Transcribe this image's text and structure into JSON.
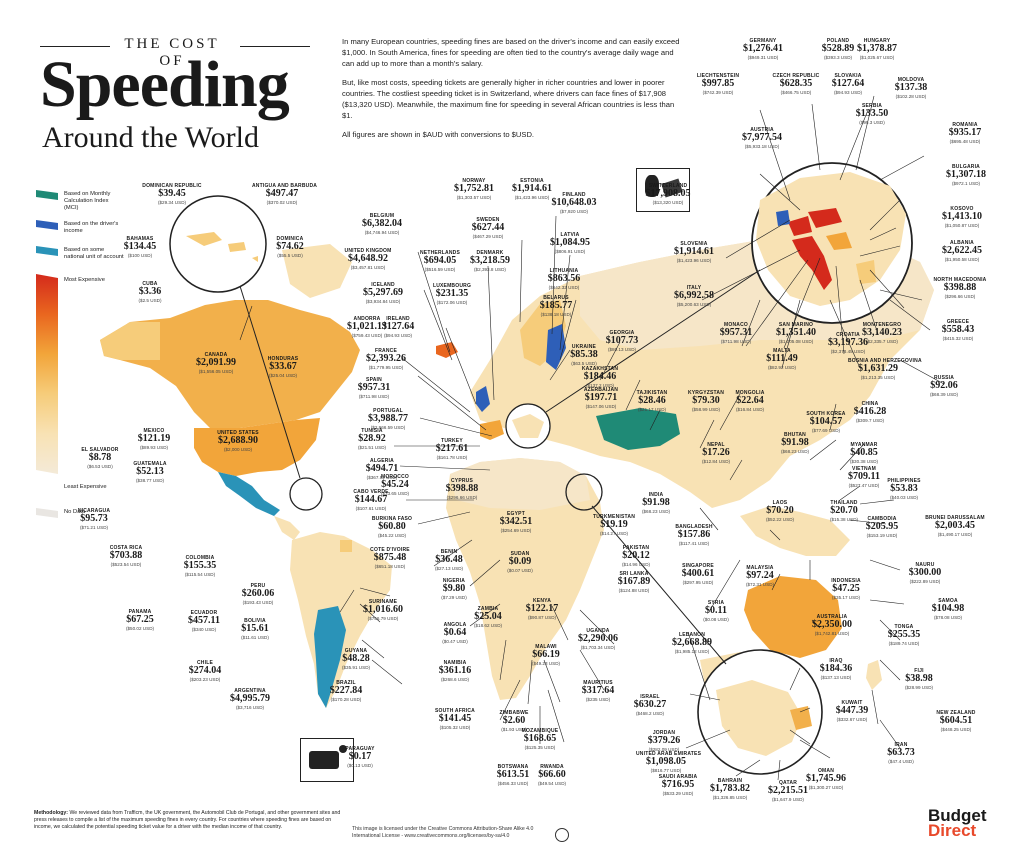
{
  "header": {
    "kicker": "THE COST OF",
    "title": "Speeding",
    "subtitle": "Around the World"
  },
  "intro": {
    "p1": "In many European countries, speeding fines are based on the driver's income and can easily exceed $1,000. In South America, fines for speeding are often tied to the country's average daily wage and can add up to more than a month's salary.",
    "p2": "But, like most costs, speeding tickets are generally higher in richer countries and lower in poorer countries. The costliest speeding ticket is in Switzerland, where drivers can face fines of $17,908 ($13,320 USD). Meanwhile, the maximum fine for speeding in several African countries is less than $1.",
    "p3": "All figures are shown in $AUD with conversions to $USD."
  },
  "legend": {
    "items": [
      {
        "label": "Based on Monthly Calculation Index (MCI)",
        "color": "#1f8a76"
      },
      {
        "label": "Based on the driver's income",
        "color": "#2e5fb8"
      },
      {
        "label": "Based on some national unit of account",
        "color": "#2a93b8"
      },
      {
        "label": "Most Expensive",
        "color": "#d42a1c"
      },
      {
        "label": "Least Expensive",
        "color": "#f4ead8"
      },
      {
        "label": "No Data",
        "color": "#eeeeee"
      }
    ],
    "gradient": [
      "#d42a1c",
      "#e9661f",
      "#f2a53a",
      "#f6cc7a",
      "#f8e2b4",
      "#f4ead8"
    ]
  },
  "colors": {
    "land_default": "#f7e4c0",
    "most_orange": "#f2b04b",
    "nodata": "#e9e6e2",
    "teal_mci": "#1f8a76",
    "blue_income": "#2e5fb8",
    "cyan_unit": "#2a93b8",
    "red_top": "#d42a1c"
  },
  "countries": [
    {
      "name": "DOMINICAN REPUBLIC",
      "aud": "$39.45",
      "usd": "$29.34 USD"
    },
    {
      "name": "ANTIGUA AND BARBUDA",
      "aud": "$497.47",
      "usd": "$370.02 USD"
    },
    {
      "name": "BAHAMAS",
      "aud": "$134.45",
      "usd": "$100 USD"
    },
    {
      "name": "DOMINICA",
      "aud": "$74.62",
      "usd": "$55.5 USD"
    },
    {
      "name": "CUBA",
      "aud": "$3.36",
      "usd": "$2.5 USD"
    },
    {
      "name": "CANADA",
      "aud": "$2,091.99",
      "usd": "$1,556.05 USD"
    },
    {
      "name": "HONDURAS",
      "aud": "$33.67",
      "usd": "$25.04 USD"
    },
    {
      "name": "UNITED STATES",
      "aud": "$2,688.90",
      "usd": "$2,000 USD"
    },
    {
      "name": "MEXICO",
      "aud": "$121.19",
      "usd": "$89.93 USD"
    },
    {
      "name": "EL SALVADOR",
      "aud": "$8.78",
      "usd": "$6.53 USD"
    },
    {
      "name": "GUATEMALA",
      "aud": "$52.13",
      "usd": "$38.77 USD"
    },
    {
      "name": "NICARAGUA",
      "aud": "$95.73",
      "usd": "$71.21 USD"
    },
    {
      "name": "COSTA RICA",
      "aud": "$703.88",
      "usd": "$523.54 USD"
    },
    {
      "name": "PANAMA",
      "aud": "$67.25",
      "usd": "$50.02 USD"
    },
    {
      "name": "COLOMBIA",
      "aud": "$155.35",
      "usd": "$115.54 USD"
    },
    {
      "name": "PERU",
      "aud": "$260.06",
      "usd": "$193.43 USD"
    },
    {
      "name": "ECUADOR",
      "aud": "$457.11",
      "usd": "$340 USD"
    },
    {
      "name": "BOLIVIA",
      "aud": "$15.61",
      "usd": "$11.61 USD"
    },
    {
      "name": "CHILE",
      "aud": "$274.04",
      "usd": "$203.23 USD"
    },
    {
      "name": "ARGENTINA",
      "aud": "$4,995.79",
      "usd": "$3,716 USD"
    },
    {
      "name": "SURINAME",
      "aud": "$1,016.60",
      "usd": "$756.79 USD"
    },
    {
      "name": "GUYANA",
      "aud": "$48.28",
      "usd": "$35.91 USD"
    },
    {
      "name": "BRAZIL",
      "aud": "$227.84",
      "usd": "$170.28 USD"
    },
    {
      "name": "PARAGUAY",
      "aud": "$0.17",
      "usd": "$0.13 USD"
    },
    {
      "name": "BELGIUM",
      "aud": "$6,382.04",
      "usd": "$4,746.94 USD"
    },
    {
      "name": "UNITED KINGDOM",
      "aud": "$4,648.92",
      "usd": "$3,457.81 USD"
    },
    {
      "name": "ICELAND",
      "aud": "$5,297.69",
      "usd": "$3,934.84 USD"
    },
    {
      "name": "IRELAND",
      "aud": "$127.64",
      "usd": "$94.93 USD"
    },
    {
      "name": "ANDORRA",
      "aud": "$1,021.13",
      "usd": "$759.43 USD"
    },
    {
      "name": "FRANCE",
      "aud": "$2,393.26",
      "usd": "$1,779.95 USD"
    },
    {
      "name": "SPAIN",
      "aud": "$957.31",
      "usd": "$711.98 USD"
    },
    {
      "name": "PORTUGAL",
      "aud": "$3,988.77",
      "usd": "$2,966.59 USD"
    },
    {
      "name": "TUNISIA",
      "aud": "$28.92",
      "usd": "$21.51 USD"
    },
    {
      "name": "ALGERIA",
      "aud": "$494.71",
      "usd": "$367.92 USD"
    },
    {
      "name": "MOROCCO",
      "aud": "$45.24",
      "usd": "$33.65 USD"
    },
    {
      "name": "CABO VERDE",
      "aud": "$144.67",
      "usd": "$107.61 USD"
    },
    {
      "name": "BURKINA FASO",
      "aud": "$60.80",
      "usd": "$45.22 USD"
    },
    {
      "name": "COTE D'IVOIRE",
      "aud": "$875.48",
      "usd": "$651.18 USD"
    },
    {
      "name": "BENIN",
      "aud": "$36.48",
      "usd": "$27.13 USD"
    },
    {
      "name": "NIGERIA",
      "aud": "$9.80",
      "usd": "$7.29 USD"
    },
    {
      "name": "ANGOLA",
      "aud": "$0.64",
      "usd": "$0.47 USD"
    },
    {
      "name": "NAMIBIA",
      "aud": "$361.16",
      "usd": "$268.6 USD"
    },
    {
      "name": "SOUTH AFRICA",
      "aud": "$141.45",
      "usd": "$105.32 USD"
    },
    {
      "name": "ZAMBIA",
      "aud": "$25.04",
      "usd": "$18.62 USD"
    },
    {
      "name": "ZIMBABWE",
      "aud": "$2.60",
      "usd": "$1.93 USD"
    },
    {
      "name": "BOTSWANA",
      "aud": "$613.51",
      "usd": "$456.33 USD"
    },
    {
      "name": "MOZAMBIQUE",
      "aud": "$168.65",
      "usd": "$125.35 USD"
    },
    {
      "name": "RWANDA",
      "aud": "$66.60",
      "usd": "$49.54 USD"
    },
    {
      "name": "MALAWI",
      "aud": "$66.19",
      "usd": "$49.23 USD"
    },
    {
      "name": "KENYA",
      "aud": "$122.17",
      "usd": "$90.87 USD"
    },
    {
      "name": "UGANDA",
      "aud": "$2,290.06",
      "usd": "$1,703.34 USD"
    },
    {
      "name": "MAURITIUS",
      "aud": "$317.64",
      "usd": "$235 USD"
    },
    {
      "name": "SUDAN",
      "aud": "$0.09",
      "usd": "$0.07 USD"
    },
    {
      "name": "EGYPT",
      "aud": "$342.51",
      "usd": "$254.69 USD"
    },
    {
      "name": "TURKEY",
      "aud": "$217.61",
      "usd": "$161.78 USD"
    },
    {
      "name": "CYPRUS",
      "aud": "$398.88",
      "usd": "$296.66 USD"
    },
    {
      "name": "NORWAY",
      "aud": "$1,752.81",
      "usd": "$1,303.57 USD"
    },
    {
      "name": "ESTONIA",
      "aud": "$1,914.61",
      "usd": "$1,423.96 USD"
    },
    {
      "name": "FINLAND",
      "aud": "$10,648.03",
      "usd": "$7,920 USD"
    },
    {
      "name": "SWEDEN",
      "aud": "$627.44",
      "usd": "$467.29 USD"
    },
    {
      "name": "NETHERLANDS",
      "aud": "$694.05",
      "usd": "$516.59 USD"
    },
    {
      "name": "DENMARK",
      "aud": "$3,218.59",
      "usd": "$2,393.8 USD"
    },
    {
      "name": "LATVIA",
      "aud": "$1,084.95",
      "usd": "$806.91 USD"
    },
    {
      "name": "LUXEMBOURG",
      "aud": "$231.35",
      "usd": "$172.06 USD"
    },
    {
      "name": "LITHUANIA",
      "aud": "$863.56",
      "usd": "$642.32 USD"
    },
    {
      "name": "BELARUS",
      "aud": "$185.77",
      "usd": "$138.18 USD"
    },
    {
      "name": "UKRAINE",
      "aud": "$85.38",
      "usd": "$63.5 USD"
    },
    {
      "name": "GEORGIA",
      "aud": "$107.73",
      "usd": "$80.13 USD"
    },
    {
      "name": "KAZAKHSTAN",
      "aud": "$184.46",
      "usd": "$137.2 USD"
    },
    {
      "name": "AZERBAIJAN",
      "aud": "$197.71",
      "usd": "$147.06 USD"
    },
    {
      "name": "TAJIKISTAN",
      "aud": "$28.46",
      "usd": "$21.17 USD"
    },
    {
      "name": "KYRGYZSTAN",
      "aud": "$79.30",
      "usd": "$58.99 USD"
    },
    {
      "name": "MONGOLIA",
      "aud": "$22.64",
      "usd": "$16.84 USD"
    },
    {
      "name": "RUSSIA",
      "aud": "$92.06",
      "usd": "$68.39 USD"
    },
    {
      "name": "SWITZERLAND",
      "aud": "$17,908.05",
      "usd": "$13,320 USD"
    },
    {
      "name": "GERMANY",
      "aud": "$1,276.41",
      "usd": "$949.31 USD"
    },
    {
      "name": "POLAND",
      "aud": "$528.89",
      "usd": "$393.3 USD"
    },
    {
      "name": "HUNGARY",
      "aud": "$1,378.87",
      "usd": "$1,025.67 USD"
    },
    {
      "name": "LIECHTENSTEIN",
      "aud": "$997.85",
      "usd": "$742.39 USD"
    },
    {
      "name": "CZECH REPUBLIC",
      "aud": "$628.35",
      "usd": "$466.75 USD"
    },
    {
      "name": "SLOVAKIA",
      "aud": "$127.64",
      "usd": "$94.93 USD"
    },
    {
      "name": "MOLDOVA",
      "aud": "$137.38",
      "usd": "$102.28 USD"
    },
    {
      "name": "SERBIA",
      "aud": "$133.50",
      "usd": "$99.3 USD"
    },
    {
      "name": "AUSTRIA",
      "aud": "$7,977.54",
      "usd": "$5,933.18 USD"
    },
    {
      "name": "ROMANIA",
      "aud": "$935.17",
      "usd": "$695.48 USD"
    },
    {
      "name": "BULGARIA",
      "aud": "$1,307.18",
      "usd": "$972.1 USD"
    },
    {
      "name": "KOSOVO",
      "aud": "$1,413.10",
      "usd": "$1,050.87 USD"
    },
    {
      "name": "SLOVENIA",
      "aud": "$1,914.61",
      "usd": "$1,423.96 USD"
    },
    {
      "name": "ALBANIA",
      "aud": "$2,622.45",
      "usd": "$1,950.58 USD"
    },
    {
      "name": "ITALY",
      "aud": "$6,992.58",
      "usd": "$5,200.63 USD"
    },
    {
      "name": "NORTH MACEDONIA",
      "aud": "$398.88",
      "usd": "$296.66 USD"
    },
    {
      "name": "MONACO",
      "aud": "$957.31",
      "usd": "$711.98 USD"
    },
    {
      "name": "SAN MARINO",
      "aud": "$1,351.40",
      "usd": "$1,005.08 USD"
    },
    {
      "name": "MONTENEGRO",
      "aud": "$3,140.23",
      "usd": "$2,335.7 USD"
    },
    {
      "name": "CROATIA",
      "aud": "$3,197.36",
      "usd": "$2,378.45 USD"
    },
    {
      "name": "GREECE",
      "aud": "$558.43",
      "usd": "$415.32 USD"
    },
    {
      "name": "MALTA",
      "aud": "$111.49",
      "usd": "$82.92 USD"
    },
    {
      "name": "BOSNIA AND HERZEGOVINA",
      "aud": "$1,631.29",
      "usd": "$1,213.35 USD"
    },
    {
      "name": "CHINA",
      "aud": "$416.28",
      "usd": "$309.7 USD"
    },
    {
      "name": "SOUTH KOREA",
      "aud": "$104.57",
      "usd": "$77.69 USD"
    },
    {
      "name": "NEPAL",
      "aud": "$17.26",
      "usd": "$12.84 USD"
    },
    {
      "name": "BHUTAN",
      "aud": "$91.98",
      "usd": "$68.23 USD"
    },
    {
      "name": "MYANMAR",
      "aud": "$40.85",
      "usd": "$30.38 USD"
    },
    {
      "name": "VIETNAM",
      "aud": "$709.11",
      "usd": "$527.47 USD"
    },
    {
      "name": "PHILIPPINES",
      "aud": "$53.83",
      "usd": "$40.03 USD"
    },
    {
      "name": "INDIA",
      "aud": "$91.98",
      "usd": "$68.23 USD"
    },
    {
      "name": "LAOS",
      "aud": "$70.20",
      "usd": "$52.22 USD"
    },
    {
      "name": "THAILAND",
      "aud": "$20.70",
      "usd": "$15.38 USD"
    },
    {
      "name": "CAMBODIA",
      "aud": "$205.95",
      "usd": "$153.19 USD"
    },
    {
      "name": "BRUNEI DARUSSALAM",
      "aud": "$2,003.45",
      "usd": "$1,490.17 USD"
    },
    {
      "name": "BANGLADESH",
      "aud": "$157.86",
      "usd": "$117.41 USD"
    },
    {
      "name": "PAKISTAN",
      "aud": "$20.12",
      "usd": "$14.96 USD"
    },
    {
      "name": "TURKMENISTAN",
      "aud": "$19.19",
      "usd": "$14.27 USD"
    },
    {
      "name": "SRI LANKA",
      "aud": "$167.89",
      "usd": "$124.88 USD"
    },
    {
      "name": "SINGAPORE",
      "aud": "$400.61",
      "usd": "$297.95 USD"
    },
    {
      "name": "MALAYSIA",
      "aud": "$97.24",
      "usd": "$72.31 USD"
    },
    {
      "name": "INDONESIA",
      "aud": "$47.25",
      "usd": "$35.17 USD"
    },
    {
      "name": "NAURU",
      "aud": "$300.00",
      "usd": "$222.89 USD"
    },
    {
      "name": "SAMOA",
      "aud": "$104.98",
      "usd": "$78.08 USD"
    },
    {
      "name": "SYRIA",
      "aud": "$0.11",
      "usd": "$0.08 USD"
    },
    {
      "name": "AUSTRALIA",
      "aud": "$2,350.00",
      "usd": "$1,742.81 USD"
    },
    {
      "name": "TONGA",
      "aud": "$255.35",
      "usd": "$189.74 USD"
    },
    {
      "name": "FIJI",
      "aud": "$38.98",
      "usd": "$28.99 USD"
    },
    {
      "name": "NEW ZEALAND",
      "aud": "$604.51",
      "usd": "$448.25 USD"
    },
    {
      "name": "LEBANON",
      "aud": "$2,668.89",
      "usd": "$1,985.12 USD"
    },
    {
      "name": "IRAQ",
      "aud": "$184.36",
      "usd": "$137.13 USD"
    },
    {
      "name": "KUWAIT",
      "aud": "$447.39",
      "usd": "$332.67 USD"
    },
    {
      "name": "ISRAEL",
      "aud": "$630.27",
      "usd": "$468.2 USD"
    },
    {
      "name": "JORDAN",
      "aud": "$379.26",
      "usd": "$282.09 USD"
    },
    {
      "name": "UNITED ARAB EMIRATES",
      "aud": "$1,098.05",
      "usd": "$816.77 USD"
    },
    {
      "name": "SAUDI ARABIA",
      "aud": "$716.95",
      "usd": "$533.29 USD"
    },
    {
      "name": "IRAN",
      "aud": "$63.73",
      "usd": "$47.4 USD"
    },
    {
      "name": "OMAN",
      "aud": "$1,745.96",
      "usd": "$1,300.27 USD"
    },
    {
      "name": "BAHRAIN",
      "aud": "$1,783.82",
      "usd": "$1,326.85 USD"
    },
    {
      "name": "QATAR",
      "aud": "$2,215.51",
      "usd": "$1,647.9 USD"
    }
  ],
  "footer": {
    "methodology_label": "Methodology:",
    "methodology": "We reviewed data from Trafficm, the UK government, the Automobil Club de Portugal, and other government sites and press releases to compile a list of the maximum speeding fines in every country. For countries where speeding fines are based on income, we calculated the potential speeding ticket value for a driver with the median income of that country.",
    "license": "This image is licensed under the Creative Commons Attribution-Share Alike 4.0 International License - www.creativecommons.org/licenses/by-sa/4.0",
    "brand_top": "Budget",
    "brand_bottom": "Direct"
  }
}
